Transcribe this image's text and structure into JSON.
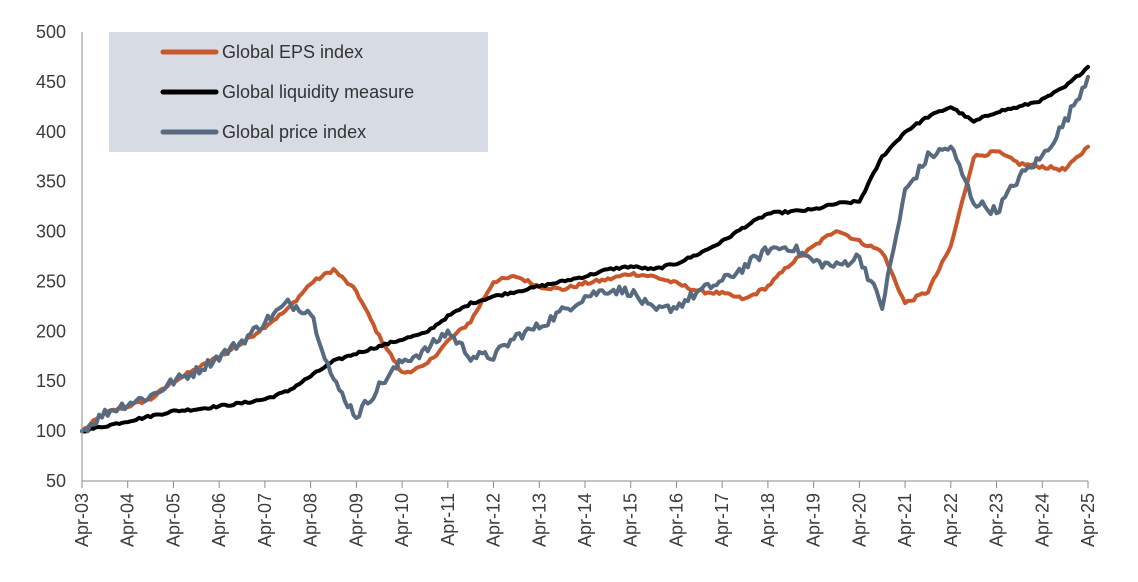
{
  "chart_data": {
    "type": "line",
    "title": "",
    "xlabel": "",
    "ylabel": "",
    "ylim": [
      50,
      500
    ],
    "yticks": [
      50,
      100,
      150,
      200,
      250,
      300,
      350,
      400,
      450,
      500
    ],
    "grid": false,
    "legend_position": "top-left",
    "x_tick_labels": [
      "Apr-03",
      "Apr-04",
      "Apr-05",
      "Apr-06",
      "Apr-07",
      "Apr-08",
      "Apr-09",
      "Apr-10",
      "Apr-11",
      "Apr-12",
      "Apr-13",
      "Apr-14",
      "Apr-15",
      "Apr-16",
      "Apr-17",
      "Apr-18",
      "Apr-19",
      "Apr-20",
      "Apr-21",
      "Apr-22",
      "Apr-23",
      "Apr-24",
      "Apr-25"
    ],
    "x": [
      "Apr-03",
      "Oct-03",
      "Apr-04",
      "Oct-04",
      "Apr-05",
      "Oct-05",
      "Apr-06",
      "Oct-06",
      "Apr-07",
      "Oct-07",
      "Apr-08",
      "Oct-08",
      "Apr-09",
      "Oct-09",
      "Apr-10",
      "Oct-10",
      "Apr-11",
      "Oct-11",
      "Apr-12",
      "Oct-12",
      "Apr-13",
      "Oct-13",
      "Apr-14",
      "Oct-14",
      "Apr-15",
      "Oct-15",
      "Apr-16",
      "Oct-16",
      "Apr-17",
      "Oct-17",
      "Apr-18",
      "Oct-18",
      "Apr-19",
      "Oct-19",
      "Apr-20",
      "Oct-20",
      "Apr-21",
      "Oct-21",
      "Apr-22",
      "Oct-22",
      "Apr-23",
      "Oct-23",
      "Apr-24",
      "Oct-24",
      "Apr-25"
    ],
    "series": [
      {
        "name": "Global EPS index",
        "color": "#c8582b",
        "values": [
          100,
          118,
          125,
          132,
          150,
          162,
          175,
          188,
          205,
          222,
          248,
          262,
          240,
          195,
          158,
          165,
          190,
          210,
          250,
          255,
          245,
          242,
          248,
          252,
          258,
          255,
          248,
          240,
          238,
          232,
          245,
          268,
          285,
          302,
          290,
          280,
          228,
          240,
          285,
          375,
          380,
          368,
          365,
          362,
          385
        ]
      },
      {
        "name": "Global liquidity measure",
        "color": "#000000",
        "values": [
          100,
          105,
          110,
          115,
          120,
          122,
          125,
          128,
          132,
          140,
          155,
          170,
          178,
          185,
          192,
          198,
          215,
          228,
          235,
          240,
          245,
          250,
          255,
          262,
          265,
          262,
          268,
          278,
          290,
          305,
          318,
          320,
          322,
          328,
          330,
          375,
          400,
          415,
          425,
          410,
          420,
          425,
          432,
          445,
          465
        ]
      },
      {
        "name": "Global price index",
        "color": "#576a80",
        "values": [
          100,
          118,
          128,
          135,
          150,
          160,
          175,
          190,
          210,
          228,
          220,
          150,
          115,
          145,
          170,
          180,
          200,
          175,
          175,
          195,
          205,
          220,
          235,
          242,
          240,
          220,
          225,
          240,
          250,
          265,
          282,
          285,
          270,
          265,
          275,
          225,
          340,
          375,
          385,
          330,
          320,
          355,
          375,
          410,
          455
        ]
      }
    ]
  }
}
